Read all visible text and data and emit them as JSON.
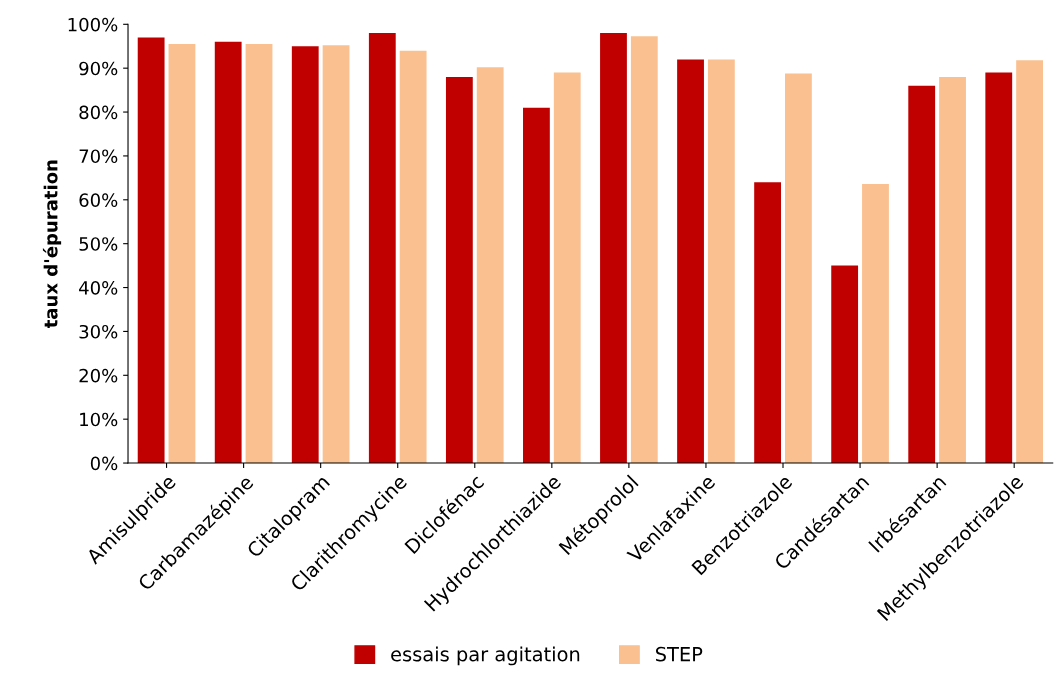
{
  "chart_data": {
    "type": "bar",
    "ylabel": "taux d'épuration",
    "categories": [
      "Amisulpride",
      "Carbamazépine",
      "Citalopram",
      "Clarithromycine",
      "Diclofénac",
      "Hydrochlorthiazide",
      "Métoprolol",
      "Venlafaxine",
      "Benzotriazole",
      "Candésartan",
      "Irbésartan",
      "Methylbenzotriazole"
    ],
    "series": [
      {
        "name": "essais par agitation",
        "color": "#c00000",
        "values": [
          97,
          96,
          95,
          98,
          88,
          81,
          98,
          92,
          64,
          45,
          86,
          89
        ]
      },
      {
        "name": "STEP",
        "color": "#fac090",
        "values": [
          95.5,
          95.5,
          95.2,
          94,
          90.2,
          89,
          97.3,
          92,
          88.8,
          63.6,
          88,
          91.8
        ]
      }
    ],
    "ylim": [
      0,
      100
    ],
    "yticks": [
      {
        "value": 0,
        "label": "0%"
      },
      {
        "value": 10,
        "label": "10%"
      },
      {
        "value": 20,
        "label": "20%"
      },
      {
        "value": 30,
        "label": "30%"
      },
      {
        "value": 40,
        "label": "40%"
      },
      {
        "value": 50,
        "label": "50%"
      },
      {
        "value": 60,
        "label": "60%"
      },
      {
        "value": 70,
        "label": "70%"
      },
      {
        "value": 80,
        "label": "80%"
      },
      {
        "value": 90,
        "label": "90%"
      },
      {
        "value": 100,
        "label": "100%"
      }
    ],
    "grid": false,
    "legend": "bottom"
  }
}
